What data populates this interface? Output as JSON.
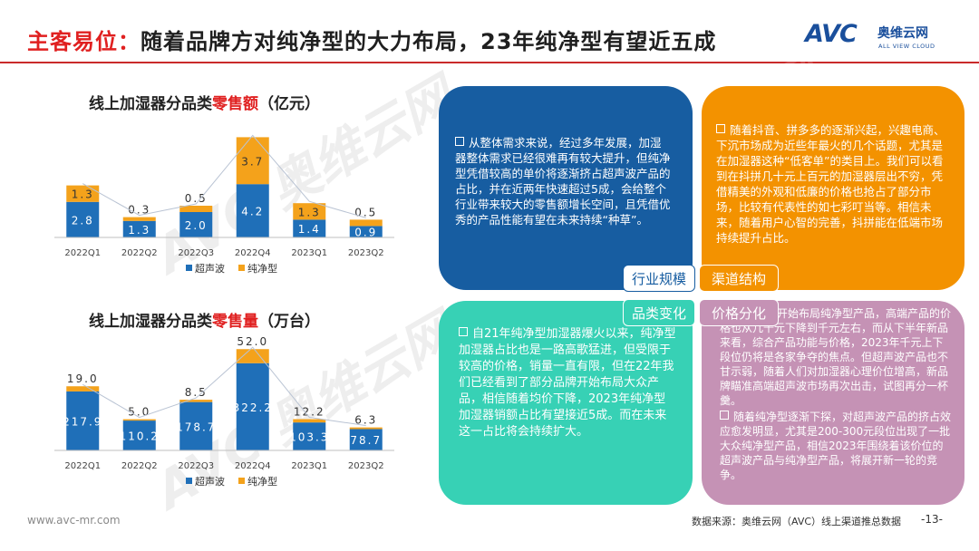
{
  "header": {
    "title_prefix": "主客易位：",
    "title_main": "随着品牌方对纯净型的大力布局，23年纯净型有望近五成"
  },
  "logo": {
    "mark": "AVC",
    "cn": "奥维云网",
    "en": "ALL VIEW CLOUD"
  },
  "chart_data": [
    {
      "type": "bar",
      "stacked": true,
      "title_prefix": "线上加湿器分品类",
      "title_highlight": "零售额",
      "title_suffix": "（亿元）",
      "categories": [
        "2022Q1",
        "2022Q2",
        "2022Q3",
        "2022Q4",
        "2023Q1",
        "2023Q2"
      ],
      "series": [
        {
          "name": "超声波",
          "color": "#1f6fb8",
          "values": [
            2.8,
            1.3,
            2.0,
            4.2,
            1.4,
            0.9
          ],
          "labels": [
            "2.8",
            "1.3",
            "2.0",
            "4.2",
            "1.4",
            "0.9"
          ]
        },
        {
          "name": "纯净型",
          "color": "#f4a21b",
          "values": [
            1.3,
            0.3,
            0.5,
            3.7,
            1.3,
            0.5
          ],
          "labels": [
            "1.3",
            "0.3",
            "0.5",
            "3.7",
            "1.3",
            "0.5"
          ]
        }
      ],
      "legend_position": "bottom",
      "ylim": [
        0,
        8
      ],
      "grid": false
    },
    {
      "type": "bar",
      "stacked": true,
      "title_prefix": "线上加湿器分品类",
      "title_highlight": "零售量",
      "title_suffix": "（万台）",
      "categories": [
        "2022Q1",
        "2022Q2",
        "2022Q3",
        "2022Q4",
        "2023Q1",
        "2023Q2"
      ],
      "series": [
        {
          "name": "超声波",
          "color": "#1f6fb8",
          "values": [
            217.9,
            110.2,
            178.7,
            322.2,
            103.3,
            78.7
          ],
          "labels": [
            "217.9",
            "110.2",
            "178.7",
            "322.2",
            "103.3",
            "78.7"
          ]
        },
        {
          "name": "纯净型",
          "color": "#f4a21b",
          "values": [
            19.0,
            5.0,
            8.5,
            52.0,
            12.2,
            6.3
          ],
          "labels": [
            "19.0",
            "5.0",
            "8.5",
            "52.0",
            "12.2",
            "6.3"
          ]
        }
      ],
      "legend_position": "bottom",
      "ylim": [
        0,
        375
      ],
      "grid": false
    }
  ],
  "quadrants": {
    "industry": "从整体需求来说，经过多年发展，加湿器整体需求已经很难再有较大提升，但纯净型凭借较高的单价将逐渐挤占超声波产品的占比，并在近两年快速超过5成，会给整个行业带来较大的零售额增长空间，且凭借优秀的产品性能有望在未来持续“种草”。",
    "channel": "随着抖音、拼多多的逐渐兴起，兴趣电商、下沉市场成为近些年最火的几个话题，尤其是在加湿器这种“低客单”的类目上。我们可以看到在抖拼几十元上百元的加湿器层出不穷，凭借精美的外观和低廉的价格也抢占了部分市场，比较有代表性的如七彩叮当等。相信未来，随着用户心智的完善，抖拼能在低端市场持续提升占比。",
    "category": "自21年纯净型加湿器爆火以来，纯净型加湿器占比也是一路高歌猛进，但受限于较高的价格，销量一直有限，但在22年我们已经看到了部分品牌开始布局大众产品，相信随着均价下降，2023年纯净型加湿器销额占比有望接近5成。而在未来这一占比将会持续扩大。",
    "price_p1": "大量企业开始布局纯净型产品，高端产品的价格也从几千元下降到千元左右，而从下半年新品来看，综合产品功能与价格，2023年千元上下段位仍将是各家争夺的焦点。但超声波产品也不甘示弱，随着人们对加湿器心理价位增高，新品牌瞄准高端超声波市场再次出击，试图再分一杯羹。",
    "price_p2": "随着纯净型逐渐下探，对超声波产品的挤占效应愈发明显，尤其是200-300元段位出现了一批大众纯净型产品，相信2023年围绕着该价位的超声波产品与纯净型产品，将展开新一轮的竞争。"
  },
  "center_labels": {
    "industry": "行业规模",
    "channel": "渠道结构",
    "category": "品类变化",
    "price": "价格分化"
  },
  "watermark": {
    "mark": "AVC",
    "cn": "奥维云网",
    "en": "ALL VIEW CLOUD"
  },
  "footer": {
    "url": "www.avc-mr.com",
    "source": "数据来源：奥维云网（AVC）线上渠道推总数据",
    "page": "-13-"
  }
}
